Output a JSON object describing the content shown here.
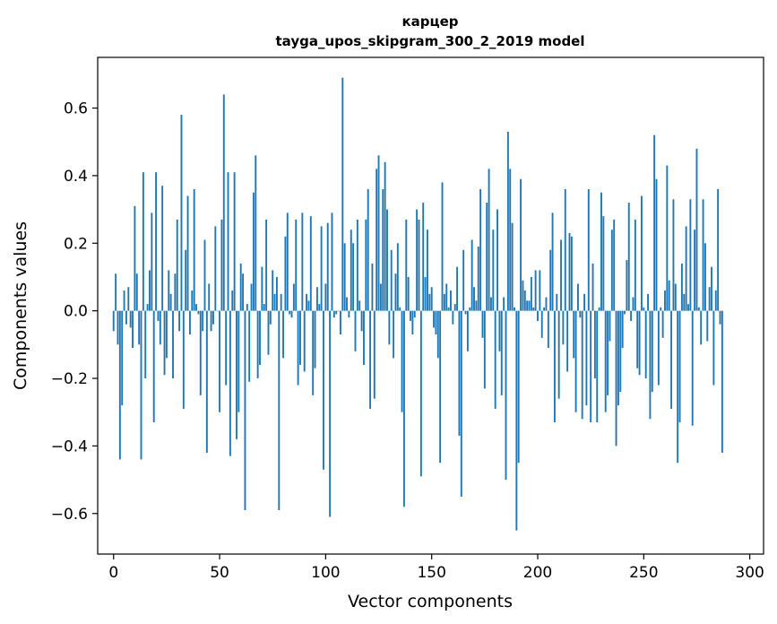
{
  "chart_data": {
    "type": "bar",
    "title_line1": "карцер",
    "title_line2": "tayga_upos_skipgram_300_2_2019 model",
    "xlabel": "Vector components",
    "ylabel": "Components values",
    "xlim": [
      -7.5,
      306.5
    ],
    "ylim": [
      -0.72,
      0.75
    ],
    "xticks": [
      0,
      50,
      100,
      150,
      200,
      250,
      300
    ],
    "xtick_labels": [
      "0",
      "50",
      "100",
      "150",
      "200",
      "250",
      "300"
    ],
    "yticks": [
      -0.6,
      -0.4,
      -0.2,
      0.0,
      0.2,
      0.4,
      0.6
    ],
    "ytick_labels": [
      "−0.6",
      "−0.4",
      "−0.2",
      "0.0",
      "0.2",
      "0.4",
      "0.6"
    ],
    "grid": false,
    "bar_color": "#1f77b4",
    "values": [
      -0.06,
      0.11,
      -0.1,
      -0.44,
      -0.28,
      0.06,
      -0.04,
      0.07,
      -0.05,
      -0.11,
      0.31,
      0.11,
      -0.1,
      -0.44,
      0.41,
      -0.2,
      0.02,
      0.12,
      0.29,
      -0.33,
      0.41,
      -0.03,
      -0.1,
      0.37,
      -0.19,
      -0.14,
      0.12,
      0.05,
      -0.2,
      0.11,
      0.27,
      -0.06,
      0.58,
      -0.29,
      0.18,
      0.34,
      -0.07,
      0.06,
      0.36,
      0.02,
      -0.01,
      -0.25,
      -0.06,
      0.21,
      -0.42,
      0.08,
      -0.06,
      -0.04,
      0.25,
      0.0,
      -0.3,
      0.27,
      0.64,
      -0.22,
      0.41,
      -0.43,
      0.06,
      0.41,
      -0.38,
      -0.3,
      0.14,
      0.11,
      -0.59,
      0.02,
      -0.21,
      0.08,
      0.35,
      0.46,
      -0.2,
      -0.16,
      0.13,
      0.02,
      0.27,
      -0.13,
      -0.04,
      0.12,
      0.05,
      0.1,
      -0.59,
      0.05,
      -0.14,
      0.22,
      0.29,
      -0.01,
      -0.02,
      0.08,
      0.27,
      -0.22,
      -0.16,
      0.29,
      -0.18,
      0.05,
      0.03,
      0.28,
      -0.25,
      -0.17,
      0.07,
      0.02,
      0.25,
      -0.47,
      0.08,
      0.26,
      -0.61,
      0.29,
      -0.02,
      -0.01,
      0.0,
      -0.07,
      0.69,
      0.2,
      0.04,
      -0.02,
      0.24,
      0.2,
      -0.12,
      0.27,
      0.03,
      -0.06,
      -0.16,
      0.27,
      0.36,
      -0.29,
      0.14,
      -0.26,
      0.42,
      0.46,
      0.08,
      0.36,
      0.44,
      0.3,
      -0.1,
      0.18,
      -0.14,
      0.11,
      0.2,
      0.01,
      -0.3,
      -0.58,
      0.27,
      0.1,
      -0.03,
      -0.07,
      -0.02,
      0.3,
      0.27,
      -0.49,
      0.32,
      0.1,
      0.24,
      0.05,
      0.07,
      -0.05,
      -0.07,
      -0.14,
      -0.45,
      0.38,
      0.05,
      0.08,
      0.01,
      0.06,
      -0.04,
      0.02,
      0.13,
      -0.37,
      -0.55,
      0.18,
      -0.01,
      -0.12,
      0.01,
      0.21,
      0.07,
      0.03,
      0.19,
      0.36,
      -0.08,
      -0.23,
      0.32,
      0.42,
      0.04,
      0.24,
      -0.29,
      0.3,
      -0.12,
      -0.25,
      0.04,
      -0.5,
      0.53,
      0.42,
      0.26,
      0.01,
      -0.65,
      -0.45,
      0.39,
      0.09,
      0.06,
      0.03,
      0.03,
      0.1,
      0.01,
      0.12,
      -0.03,
      0.12,
      -0.08,
      0.01,
      0.04,
      -0.11,
      0.18,
      0.29,
      -0.33,
      0.05,
      -0.26,
      0.21,
      -0.1,
      0.36,
      -0.18,
      0.23,
      0.22,
      -0.14,
      -0.3,
      0.08,
      -0.02,
      -0.32,
      0.05,
      -0.28,
      0.36,
      -0.33,
      0.14,
      -0.2,
      -0.33,
      0.01,
      0.35,
      0.28,
      -0.3,
      -0.25,
      -0.09,
      0.24,
      0.27,
      -0.4,
      -0.28,
      -0.24,
      -0.11,
      -0.01,
      0.15,
      0.32,
      -0.03,
      0.04,
      0.27,
      -0.17,
      -0.19,
      0.34,
      0.01,
      -0.2,
      0.05,
      -0.32,
      -0.24,
      0.52,
      0.39,
      -0.22,
      0.01,
      -0.08,
      0.06,
      0.43,
      0.09,
      -0.29,
      0.33,
      0.08,
      -0.45,
      -0.33,
      0.14,
      0.05,
      0.25,
      0.02,
      0.33,
      -0.34,
      0.24,
      0.48,
      0.01,
      -0.1,
      0.33,
      0.2,
      -0.09,
      0.07,
      0.13,
      -0.22,
      0.06,
      0.36,
      -0.04,
      -0.42
    ]
  }
}
